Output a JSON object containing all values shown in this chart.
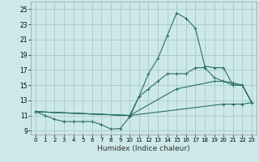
{
  "xlabel": "Humidex (Indice chaleur)",
  "bg_color": "#cce8e8",
  "grid_color": "#b0cccc",
  "line_color": "#2a6e6a",
  "xlim": [
    -0.5,
    23.5
  ],
  "ylim": [
    8.5,
    26.0
  ],
  "xticks": [
    0,
    1,
    2,
    3,
    4,
    5,
    6,
    7,
    8,
    9,
    10,
    11,
    12,
    13,
    14,
    15,
    16,
    17,
    18,
    19,
    20,
    21,
    22,
    23
  ],
  "yticks": [
    9,
    11,
    13,
    15,
    17,
    19,
    21,
    23,
    25
  ],
  "line1_x": [
    0,
    1,
    2,
    3,
    4,
    5,
    6,
    7,
    8,
    9,
    10,
    11,
    12,
    13,
    14,
    15,
    16,
    17,
    18,
    19,
    20,
    21,
    22,
    23
  ],
  "line1_y": [
    11.5,
    11.0,
    10.5,
    10.2,
    10.2,
    10.2,
    10.2,
    9.8,
    9.2,
    9.3,
    10.8,
    13.5,
    16.5,
    18.5,
    21.5,
    24.5,
    23.8,
    22.5,
    17.5,
    17.3,
    17.3,
    15.0,
    15.0,
    12.7
  ],
  "line2_x": [
    0,
    10,
    11,
    12,
    13,
    14,
    15,
    16,
    17,
    18,
    19,
    20,
    21,
    22,
    23
  ],
  "line2_y": [
    11.5,
    11.0,
    13.5,
    14.5,
    15.5,
    16.5,
    16.5,
    16.5,
    17.3,
    17.3,
    16.0,
    15.5,
    15.0,
    15.0,
    12.7
  ],
  "line3_x": [
    0,
    10,
    15,
    19,
    20,
    21,
    22,
    23
  ],
  "line3_y": [
    11.5,
    11.0,
    14.5,
    15.5,
    15.5,
    15.3,
    15.0,
    12.7
  ],
  "line4_x": [
    0,
    10,
    20,
    21,
    22,
    23
  ],
  "line4_y": [
    11.5,
    11.0,
    12.5,
    12.5,
    12.5,
    12.7
  ]
}
